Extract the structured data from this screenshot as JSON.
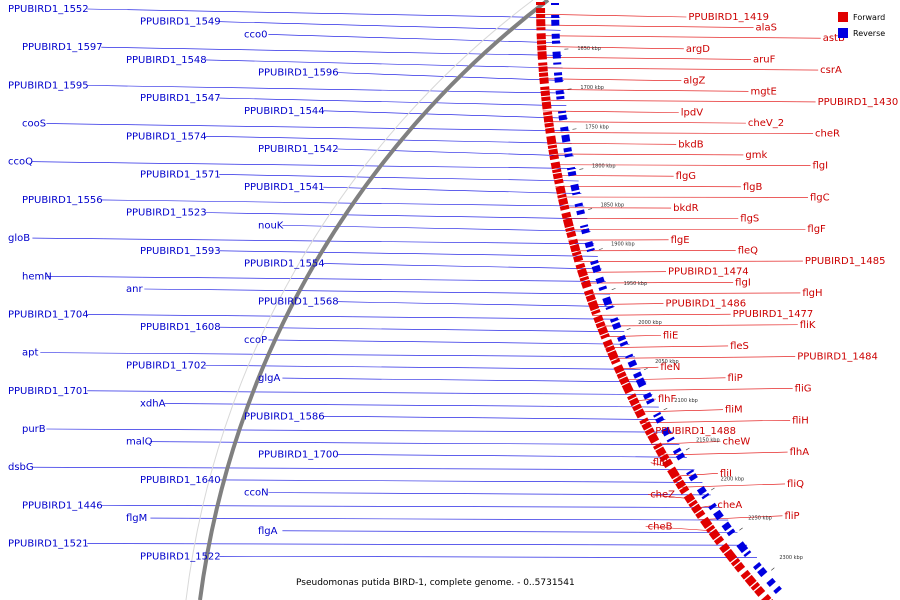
{
  "caption": "Pseudomonas putida BIRD-1, complete genome. - 0..5731541",
  "legend": {
    "forward": {
      "label": "Forward",
      "color": "#e00000"
    },
    "reverse": {
      "label": "Reverse",
      "color": "#0000e0"
    }
  },
  "backbone_color": "#808080",
  "kbp_ticks": [
    "1650 kbp",
    "1700 kbp",
    "1750 kbp",
    "1800 kbp",
    "1850 kbp",
    "1900 kbp",
    "1950 kbp",
    "2000 kbp",
    "2050 kbp",
    "2100 kbp",
    "2150 kbp",
    "2200 kbp",
    "2250 kbp",
    "2300 kbp"
  ],
  "reverse_labels": [
    "PPUBIRD1_1552",
    "PPUBIRD1_1549",
    "cco0",
    "PPUBIRD1_1597",
    "PPUBIRD1_1548",
    "PPUBIRD1_1596",
    "PPUBIRD1_1595",
    "PPUBIRD1_1547",
    "PPUBIRD1_1544",
    "cooS",
    "PPUBIRD1_1574",
    "PPUBIRD1_1542",
    "ccoQ",
    "PPUBIRD1_1571",
    "PPUBIRD1_1541",
    "PPUBIRD1_1556",
    "PPUBIRD1_1523",
    "nouK",
    "gloB",
    "PPUBIRD1_1593",
    "PPUBIRD1_1554",
    "hemN",
    "anr",
    "PPUBIRD1_1568",
    "PPUBIRD1_1704",
    "PPUBIRD1_1608",
    "ccoP",
    "apt",
    "PPUBIRD1_1702",
    "glgA",
    "PPUBIRD1_1701",
    "xdhA",
    "PPUBIRD1_1586",
    "purB",
    "malQ",
    "PPUBIRD1_1700",
    "dsbG",
    "PPUBIRD1_1640",
    "ccoN",
    "PPUBIRD1_1446",
    "flgM",
    "flgA",
    "PPUBIRD1_1521",
    "PPUBIRD1_1522"
  ],
  "forward_labels": [
    "PPUBIRD1_1419",
    "alaS",
    "astB",
    "argD",
    "aruF",
    "csrA",
    "algZ",
    "mgtE",
    "PPUBIRD1_1430",
    "lpdV",
    "cheV_2",
    "cheR",
    "bkdB",
    "gmk",
    "flgI",
    "flgG",
    "flgB",
    "flgC",
    "bkdR",
    "flgS",
    "flgF",
    "flgE",
    "fleQ",
    "PPUBIRD1_1485",
    "PPUBIRD1_1474",
    "flgI",
    "flgH",
    "PPUBIRD1_1486",
    "PPUBIRD1_1477",
    "fliK",
    "fliE",
    "fleS",
    "PPUBIRD1_1484",
    "fleN",
    "fliP",
    "fliG",
    "flhF",
    "fliM",
    "fliH",
    "PPUBIRD1_1488",
    "cheW",
    "flhA",
    "fliR",
    "fliI",
    "fliQ",
    "cheZ",
    "cheA",
    "fliP",
    "cheB"
  ]
}
